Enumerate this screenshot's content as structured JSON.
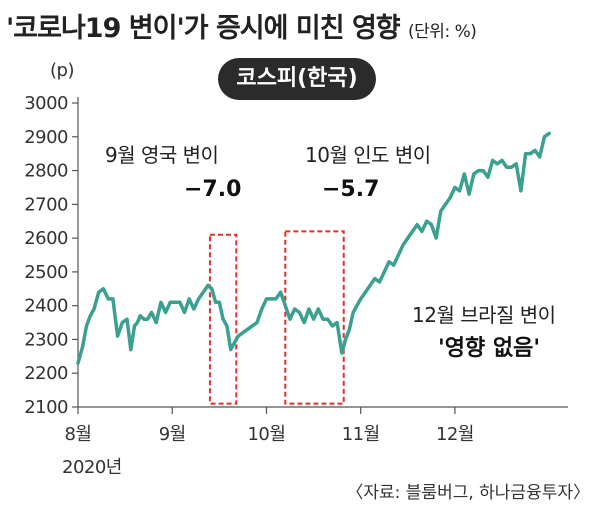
{
  "title": "'코로나19 변이'가 증시에 미친 영향",
  "unit": "(단위: %)",
  "series_label": "코스피(한국)",
  "y_unit": "(p)",
  "source": "〈자료: 블룸버그, 하나금융투자〉",
  "x_year": "2020년",
  "annotations": {
    "uk": {
      "line1": "9월 영국 변이",
      "line2": "−7.0"
    },
    "india": {
      "line1": "10월 인도 변이",
      "line2": "−5.7"
    },
    "brazil": {
      "line1": "12월 브라질 변이",
      "line2": "'영향 없음'"
    }
  },
  "colors": {
    "line": "#3aa08f",
    "highlight": "#e0302a",
    "axis": "#555555"
  },
  "chart_data": {
    "type": "line",
    "ylim": [
      2100,
      3000
    ],
    "yticks": [
      2100,
      2200,
      2300,
      2400,
      2500,
      2600,
      2700,
      2800,
      2900,
      3000
    ],
    "xlim": [
      0,
      5.2
    ],
    "month_ticks": [
      {
        "x": 0,
        "label": "8월"
      },
      {
        "x": 1,
        "label": "9월"
      },
      {
        "x": 2,
        "label": "10월"
      },
      {
        "x": 3,
        "label": "11월"
      },
      {
        "x": 4,
        "label": "12월"
      }
    ],
    "highlight_ranges": [
      {
        "name": "9월 영국 변이",
        "x": [
          1.4,
          1.68
        ],
        "y": [
          2110,
          2610
        ]
      },
      {
        "name": "10월 인도 변이",
        "x": [
          2.2,
          2.82
        ],
        "y": [
          2110,
          2620
        ]
      }
    ],
    "x": [
      0.0,
      0.05,
      0.09,
      0.13,
      0.17,
      0.22,
      0.27,
      0.32,
      0.37,
      0.42,
      0.47,
      0.52,
      0.56,
      0.6,
      0.63,
      0.66,
      0.7,
      0.74,
      0.78,
      0.83,
      0.88,
      0.93,
      0.98,
      1.03,
      1.08,
      1.13,
      1.18,
      1.23,
      1.28,
      1.33,
      1.38,
      1.42,
      1.46,
      1.5,
      1.54,
      1.58,
      1.62,
      1.66,
      1.7,
      1.75,
      1.8,
      1.85,
      1.9,
      1.95,
      2.0,
      2.05,
      2.1,
      2.15,
      2.2,
      2.25,
      2.3,
      2.35,
      2.4,
      2.45,
      2.5,
      2.55,
      2.6,
      2.65,
      2.7,
      2.75,
      2.8,
      2.84,
      2.88,
      2.92,
      2.96,
      3.0,
      3.05,
      3.1,
      3.15,
      3.2,
      3.25,
      3.3,
      3.35,
      3.4,
      3.45,
      3.5,
      3.55,
      3.6,
      3.65,
      3.7,
      3.75,
      3.8,
      3.85,
      3.9,
      3.95,
      4.0,
      4.05,
      4.1,
      4.15,
      4.2,
      4.25,
      4.3,
      4.35,
      4.4,
      4.45,
      4.5,
      4.55,
      4.6,
      4.65,
      4.7,
      4.75,
      4.8,
      4.85,
      4.9,
      4.95,
      5.0
    ],
    "y": [
      2230,
      2280,
      2340,
      2370,
      2390,
      2440,
      2450,
      2420,
      2420,
      2310,
      2350,
      2360,
      2270,
      2340,
      2350,
      2370,
      2360,
      2360,
      2380,
      2350,
      2410,
      2380,
      2410,
      2410,
      2410,
      2380,
      2420,
      2390,
      2420,
      2440,
      2460,
      2450,
      2410,
      2410,
      2360,
      2340,
      2270,
      2290,
      2310,
      2320,
      2330,
      2340,
      2350,
      2390,
      2420,
      2420,
      2420,
      2440,
      2400,
      2360,
      2390,
      2380,
      2350,
      2390,
      2360,
      2390,
      2360,
      2360,
      2340,
      2350,
      2260,
      2300,
      2330,
      2380,
      2400,
      2420,
      2440,
      2460,
      2480,
      2470,
      2500,
      2530,
      2520,
      2550,
      2580,
      2600,
      2620,
      2640,
      2620,
      2650,
      2640,
      2600,
      2680,
      2700,
      2720,
      2750,
      2740,
      2790,
      2730,
      2790,
      2800,
      2800,
      2780,
      2830,
      2820,
      2830,
      2810,
      2810,
      2820,
      2740,
      2850,
      2850,
      2860,
      2840,
      2900,
      2910
    ]
  }
}
